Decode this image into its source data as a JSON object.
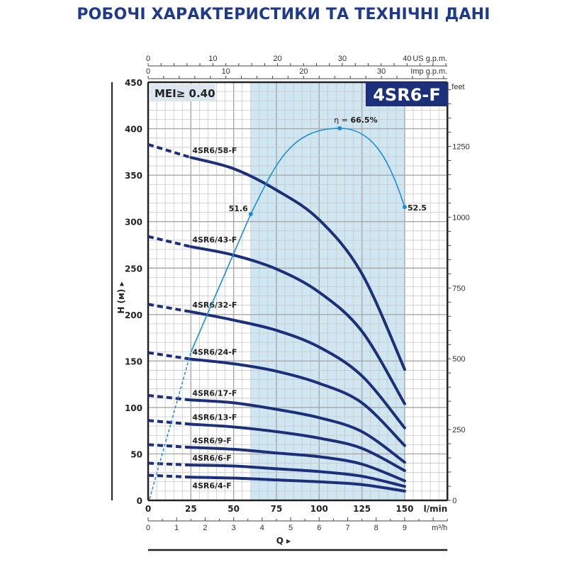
{
  "title": "РОБОЧІ ХАРАКТЕРИСТИКИ ТА ТЕХНІЧНІ ДАНІ",
  "badge_model": "4SR6-F",
  "badge_mei": "MEI≥ 0.40",
  "colors": {
    "title": "#1f3a8a",
    "curve": "#1c2f7a",
    "efficiency": "#1a8fd8",
    "band": "#cfe7f2",
    "badge_bg": "#1c2f7a",
    "mei_bg": "#dbe6ee",
    "grid": "#c8c8c8",
    "grid_major": "#a8a8a8"
  },
  "chart_data": {
    "type": "line",
    "title": "4SR6-F",
    "xlabel": "Q",
    "x_unit": "l/min",
    "ylabel": "H (м)",
    "y_unit": "m",
    "xlim": [
      0,
      175
    ],
    "ylim": [
      0,
      450
    ],
    "x_ticks": [
      0,
      25,
      50,
      75,
      100,
      125,
      150
    ],
    "y_ticks": [
      0,
      50,
      100,
      150,
      200,
      250,
      300,
      350,
      400,
      450
    ],
    "secondary_axes": {
      "top_us_gpm": {
        "label": "US g.p.m.",
        "ticks": [
          0,
          10,
          20,
          30,
          40
        ]
      },
      "top_imp_gpm": {
        "label": "Imp g.p.m.",
        "ticks": [
          0,
          10,
          20,
          30
        ]
      },
      "bottom_m3h": {
        "label": "m³/h",
        "ticks": [
          0,
          1,
          2,
          3,
          4,
          5,
          6,
          7,
          8,
          9
        ]
      },
      "right_feet": {
        "label": "feet",
        "ticks": [
          0,
          250,
          500,
          750,
          1000,
          1250
        ]
      }
    },
    "recommended_range": {
      "from_q": 60,
      "to_q": 150
    },
    "x": [
      0,
      25,
      50,
      75,
      100,
      125,
      150
    ],
    "dashed_segment": {
      "from_q": 0,
      "to_q": 25
    },
    "series": [
      {
        "name": "4SR6/58-F",
        "values": [
          383,
          369,
          357,
          334,
          302,
          244,
          141
        ]
      },
      {
        "name": "4SR6/43-F",
        "values": [
          284,
          273,
          264,
          249,
          224,
          182,
          104
        ]
      },
      {
        "name": "4SR6/32-F",
        "values": [
          211,
          203,
          194,
          183,
          165,
          134,
          78
        ]
      },
      {
        "name": "4SR6/24-F",
        "values": [
          159,
          152,
          147,
          139,
          126,
          105,
          59
        ]
      },
      {
        "name": "4SR6/17-F",
        "values": [
          113,
          108,
          105,
          98,
          89,
          74,
          41
        ]
      },
      {
        "name": "4SR6/13-F",
        "values": [
          86,
          82,
          79,
          74,
          67,
          56,
          32
        ]
      },
      {
        "name": "4SR6/9-F",
        "values": [
          60,
          57,
          55,
          51,
          47,
          39,
          21
        ]
      },
      {
        "name": "4SR6/6-F",
        "values": [
          40,
          38,
          37,
          34,
          31,
          26,
          15
        ]
      },
      {
        "name": "4SR6/4-F",
        "values": [
          27,
          25,
          24,
          22,
          20,
          17,
          10
        ]
      }
    ],
    "efficiency": {
      "label": "η = 66.5%",
      "peak_label": "66.5%",
      "points": [
        {
          "q": 60,
          "eff": 51.6,
          "label": "51.6"
        },
        {
          "q": 112,
          "eff": 66.5,
          "label": "η = 66.5%"
        },
        {
          "q": 150,
          "eff": 52.5,
          "label": "52.5"
        }
      ]
    },
    "grid": true,
    "legend_position": "inline-labels"
  },
  "labels": {
    "q_axis": "Q",
    "h_axis": "H (м)",
    "lmin": "l/min",
    "m3h": "m³/h",
    "feet": "feet",
    "us_gpm": "US g.p.m.",
    "imp_gpm": "Imp g.p.m.",
    "eta": "η = ",
    "eta_val": "66.5%",
    "eff_left": "51.6",
    "eff_right": "52.5"
  }
}
